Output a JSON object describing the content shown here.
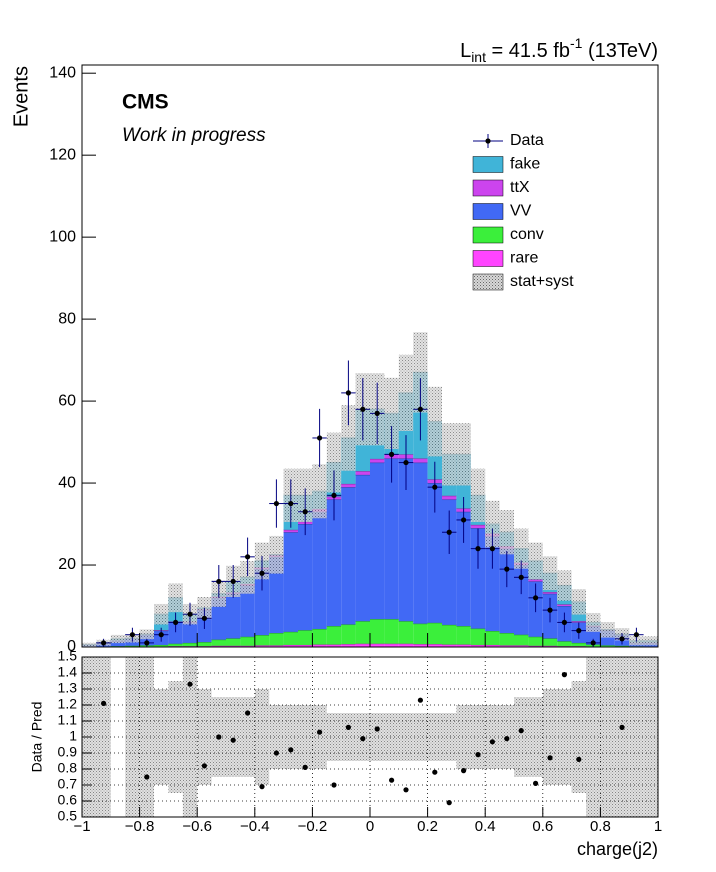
{
  "chart_data": [
    {
      "type": "histogram",
      "lumi": [
        "L",
        "int",
        " = 41.5 fb",
        "-1",
        " (13TeV)"
      ],
      "title": "CMS",
      "subtitle": "Work in progress",
      "ylabel": "Events",
      "bins": [
        -1,
        -0.95,
        -0.9,
        -0.85,
        -0.8,
        -0.75,
        -0.7,
        -0.65,
        -0.6,
        -0.55,
        -0.5,
        -0.45,
        -0.4,
        -0.35,
        -0.3,
        -0.25,
        -0.2,
        -0.15,
        -0.1,
        -0.05,
        0,
        0.05,
        0.1,
        0.15,
        0.2,
        0.25,
        0.3,
        0.35,
        0.4,
        0.45,
        0.5,
        0.55,
        0.6,
        0.65,
        0.7,
        0.75,
        0.8,
        0.85,
        0.9,
        0.95,
        1
      ],
      "data": {
        "name": "Data",
        "color": "#000080",
        "values": [
          null,
          1,
          null,
          3,
          1,
          3,
          6,
          8,
          7,
          16,
          16,
          22,
          18,
          35,
          35,
          33,
          51,
          37,
          62,
          58,
          57,
          47,
          45,
          58,
          39,
          28,
          31,
          24,
          24,
          19,
          17,
          12,
          9,
          6,
          4,
          1,
          null,
          2,
          3,
          null
        ],
        "errors": [
          null,
          1,
          null,
          1.7,
          1,
          1.7,
          2.4,
          2.8,
          2.6,
          4,
          4,
          4.7,
          4.2,
          5.9,
          5.9,
          5.7,
          7.1,
          6.1,
          7.9,
          7.6,
          7.5,
          6.9,
          6.7,
          7.6,
          6.2,
          5.3,
          5.6,
          4.9,
          4.9,
          4.4,
          4.1,
          3.5,
          3,
          2.4,
          2,
          1,
          null,
          1.4,
          1.7,
          null
        ]
      },
      "series": [
        {
          "name": "fake",
          "color": "#40b4d8",
          "values": [
            0,
            0,
            0.4,
            0,
            0,
            3.9,
            5.8,
            1.8,
            0.3,
            0.7,
            2.7,
            1.6,
            1.6,
            0,
            8.4,
            6.4,
            4.3,
            8.3,
            11.2,
            15.1,
            12.1,
            10,
            15,
            21,
            14.1,
            10.1,
            13.2,
            7.2,
            2.3,
            3.4,
            3.4,
            4.5,
            4.6,
            4.6,
            4.7,
            0.8,
            0,
            0,
            0.45,
            0.45
          ]
        },
        {
          "name": "ttX",
          "color": "#cc44ee",
          "values": [
            0.02,
            0.05,
            0.05,
            0.1,
            0.1,
            0.1,
            0.2,
            0.2,
            0.2,
            0.3,
            0.3,
            0.4,
            0.4,
            0.5,
            0.6,
            0.6,
            0.7,
            0.7,
            0.8,
            0.9,
            0.9,
            1,
            1,
            1,
            0.9,
            0.9,
            0.8,
            0.8,
            0.7,
            0.6,
            0.6,
            0.5,
            0.4,
            0.4,
            0.3,
            0.2,
            0.2,
            0.1,
            0.05,
            0.05
          ]
        },
        {
          "name": "VV",
          "color": "#4169f5",
          "values": [
            0.45,
            0.95,
            1.3,
            1.7,
            2.6,
            3.5,
            5.2,
            5,
            7.8,
            10.2,
            10.9,
            12.5,
            16.1,
            18.6,
            24.3,
            25.9,
            28.6,
            30.9,
            33.5,
            35.7,
            38.2,
            39.2,
            39.7,
            39.3,
            34.1,
            30.6,
            27.9,
            24.5,
            23.1,
            20.6,
            17,
            13.5,
            10.9,
            8.6,
            5,
            4.4,
            3.6,
            2.7,
            0.85,
            0.95
          ]
        },
        {
          "name": "conv",
          "color": "#3bef3b",
          "values": [
            0,
            0,
            0.1,
            0.2,
            0.3,
            0.4,
            0.6,
            0.8,
            1,
            1.5,
            1.8,
            2.2,
            2.5,
            3,
            3.2,
            3.6,
            3.8,
            4.5,
            4.8,
            5.5,
            6,
            6,
            5.5,
            5,
            5.2,
            4.8,
            4.5,
            4,
            3.4,
            3,
            2.6,
            2.2,
            1.8,
            1.2,
            0.8,
            0.5,
            0.3,
            0.2,
            0.1,
            0
          ]
        },
        {
          "name": "rare",
          "color": "#ff44ff",
          "values": [
            0.05,
            0.05,
            0.1,
            0.1,
            0.1,
            0.1,
            0.2,
            0.2,
            0.2,
            0.3,
            0.3,
            0.3,
            0.4,
            0.4,
            0.5,
            0.5,
            0.6,
            0.6,
            0.7,
            0.8,
            0.8,
            0.8,
            0.8,
            0.7,
            0.7,
            0.6,
            0.6,
            0.5,
            0.5,
            0.4,
            0.4,
            0.3,
            0.3,
            0.2,
            0.2,
            0.1,
            0.1,
            0.1,
            0.05,
            0.05
          ]
        }
      ],
      "band": {
        "name": "stat+syst",
        "values": [
          0.5,
          0.7,
          1,
          1,
          1.2,
          2.5,
          3.5,
          2.5,
          2.7,
          3.2,
          3.8,
          4,
          4.5,
          4.6,
          6.5,
          6.5,
          6.6,
          7.3,
          8,
          8.8,
          8.8,
          8.7,
          9.3,
          9.8,
          8.5,
          7.6,
          7.6,
          6.5,
          5.7,
          5.4,
          4.9,
          4.5,
          4.1,
          3.7,
          3.1,
          2.3,
          1.9,
          1.5,
          1.1,
          1.1
        ]
      },
      "ylim": [
        0,
        142
      ],
      "yticks": [
        0,
        20,
        40,
        60,
        80,
        100,
        120,
        140
      ]
    },
    {
      "type": "ratio",
      "ylabel": "Data / Pred",
      "xlabel": "charge(j2)",
      "grid": true,
      "values": [
        null,
        1.21,
        null,
        null,
        0.75,
        null,
        null,
        1.33,
        0.82,
        1.0,
        0.98,
        1.15,
        0.69,
        0.9,
        0.92,
        0.81,
        1.03,
        0.7,
        1.06,
        0.99,
        1.05,
        0.73,
        0.67,
        1.23,
        0.78,
        0.59,
        0.79,
        0.89,
        0.97,
        0.99,
        1.04,
        0.71,
        0.87,
        1.39,
        0.86,
        null,
        null,
        1.06,
        null,
        null
      ],
      "band": [
        0.6,
        0.6,
        0,
        0.6,
        0.5,
        0.3,
        0.35,
        0.6,
        0.3,
        0.25,
        0.25,
        0.25,
        0.3,
        0.2,
        0.2,
        0.2,
        0.2,
        0.15,
        0.15,
        0.15,
        0.15,
        0.15,
        0.15,
        0.15,
        0.15,
        0.15,
        0.2,
        0.2,
        0.2,
        0.2,
        0.25,
        0.25,
        0.3,
        0.3,
        0.35,
        0.5,
        0.6,
        0.6,
        0.6,
        0.6
      ],
      "ylim": [
        0.5,
        1.5
      ],
      "yticks": [
        0.5,
        0.6,
        0.7,
        0.8,
        0.9,
        1,
        1.1,
        1.2,
        1.3,
        1.4,
        1.5
      ],
      "xlim": [
        -1,
        1
      ],
      "xticks": [
        {
          "value": -1,
          "label": "−1"
        },
        {
          "value": -0.8,
          "label": "−0.8"
        },
        {
          "value": -0.6,
          "label": "−0.6"
        },
        {
          "value": -0.4,
          "label": "−0.4"
        },
        {
          "value": -0.2,
          "label": "−0.2"
        },
        0,
        0.2,
        0.4,
        0.6,
        0.8,
        1
      ]
    }
  ]
}
